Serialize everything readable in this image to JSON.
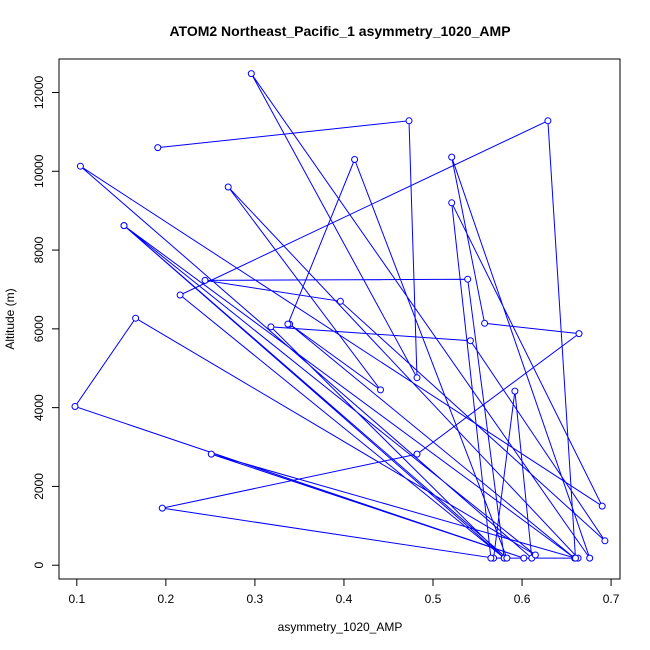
{
  "chart_data": {
    "type": "line",
    "title": "ATOM2 Northeast_Pacific_1 asymmetry_1020_AMP",
    "xlabel": "asymmetry_1020_AMP",
    "ylabel": "Altitude (m)",
    "xlim": [
      0.08,
      0.71
    ],
    "ylim": [
      -350,
      12850
    ],
    "xticks": [
      0.1,
      0.2,
      0.3,
      0.4,
      0.5,
      0.6,
      0.7
    ],
    "xtick_labels": [
      "0.1",
      "0.2",
      "0.3",
      "0.4",
      "0.5",
      "0.6",
      "0.7"
    ],
    "yticks": [
      0,
      2000,
      4000,
      6000,
      8000,
      10000,
      12000
    ],
    "ytick_labels": [
      "0",
      "2000",
      "4000",
      "6000",
      "8000",
      "10000",
      "12000"
    ],
    "grid": false,
    "series": [
      {
        "color": "#0000ff",
        "marker": "open-circle",
        "x": [
          0.191,
          0.473,
          0.482,
          0.296,
          0.676,
          0.521,
          0.558,
          0.664,
          0.482,
          0.196,
          0.568,
          0.592,
          0.611,
          0.104,
          0.69,
          0.521,
          0.565,
          0.663,
          0.27,
          0.441,
          0.339,
          0.659,
          0.153,
          0.615,
          0.166,
          0.098,
          0.602,
          0.251,
          0.66,
          0.629,
          0.216,
          0.58,
          0.539,
          0.244,
          0.396,
          0.693,
          0.542,
          0.318,
          0.58,
          0.153,
          0.583,
          0.412,
          0.337
        ],
        "y": [
          10600,
          11280,
          4760,
          12480,
          180,
          10360,
          6140,
          5880,
          2820,
          1450,
          180,
          4420,
          180,
          10130,
          1500,
          9200,
          180,
          180,
          9600,
          4450,
          6120,
          180,
          8620,
          260,
          6270,
          4030,
          180,
          2820,
          180,
          11280,
          6860,
          180,
          7260,
          7230,
          6700,
          620,
          5700,
          6050,
          180,
          8620,
          180,
          10300,
          6120
        ]
      }
    ]
  }
}
